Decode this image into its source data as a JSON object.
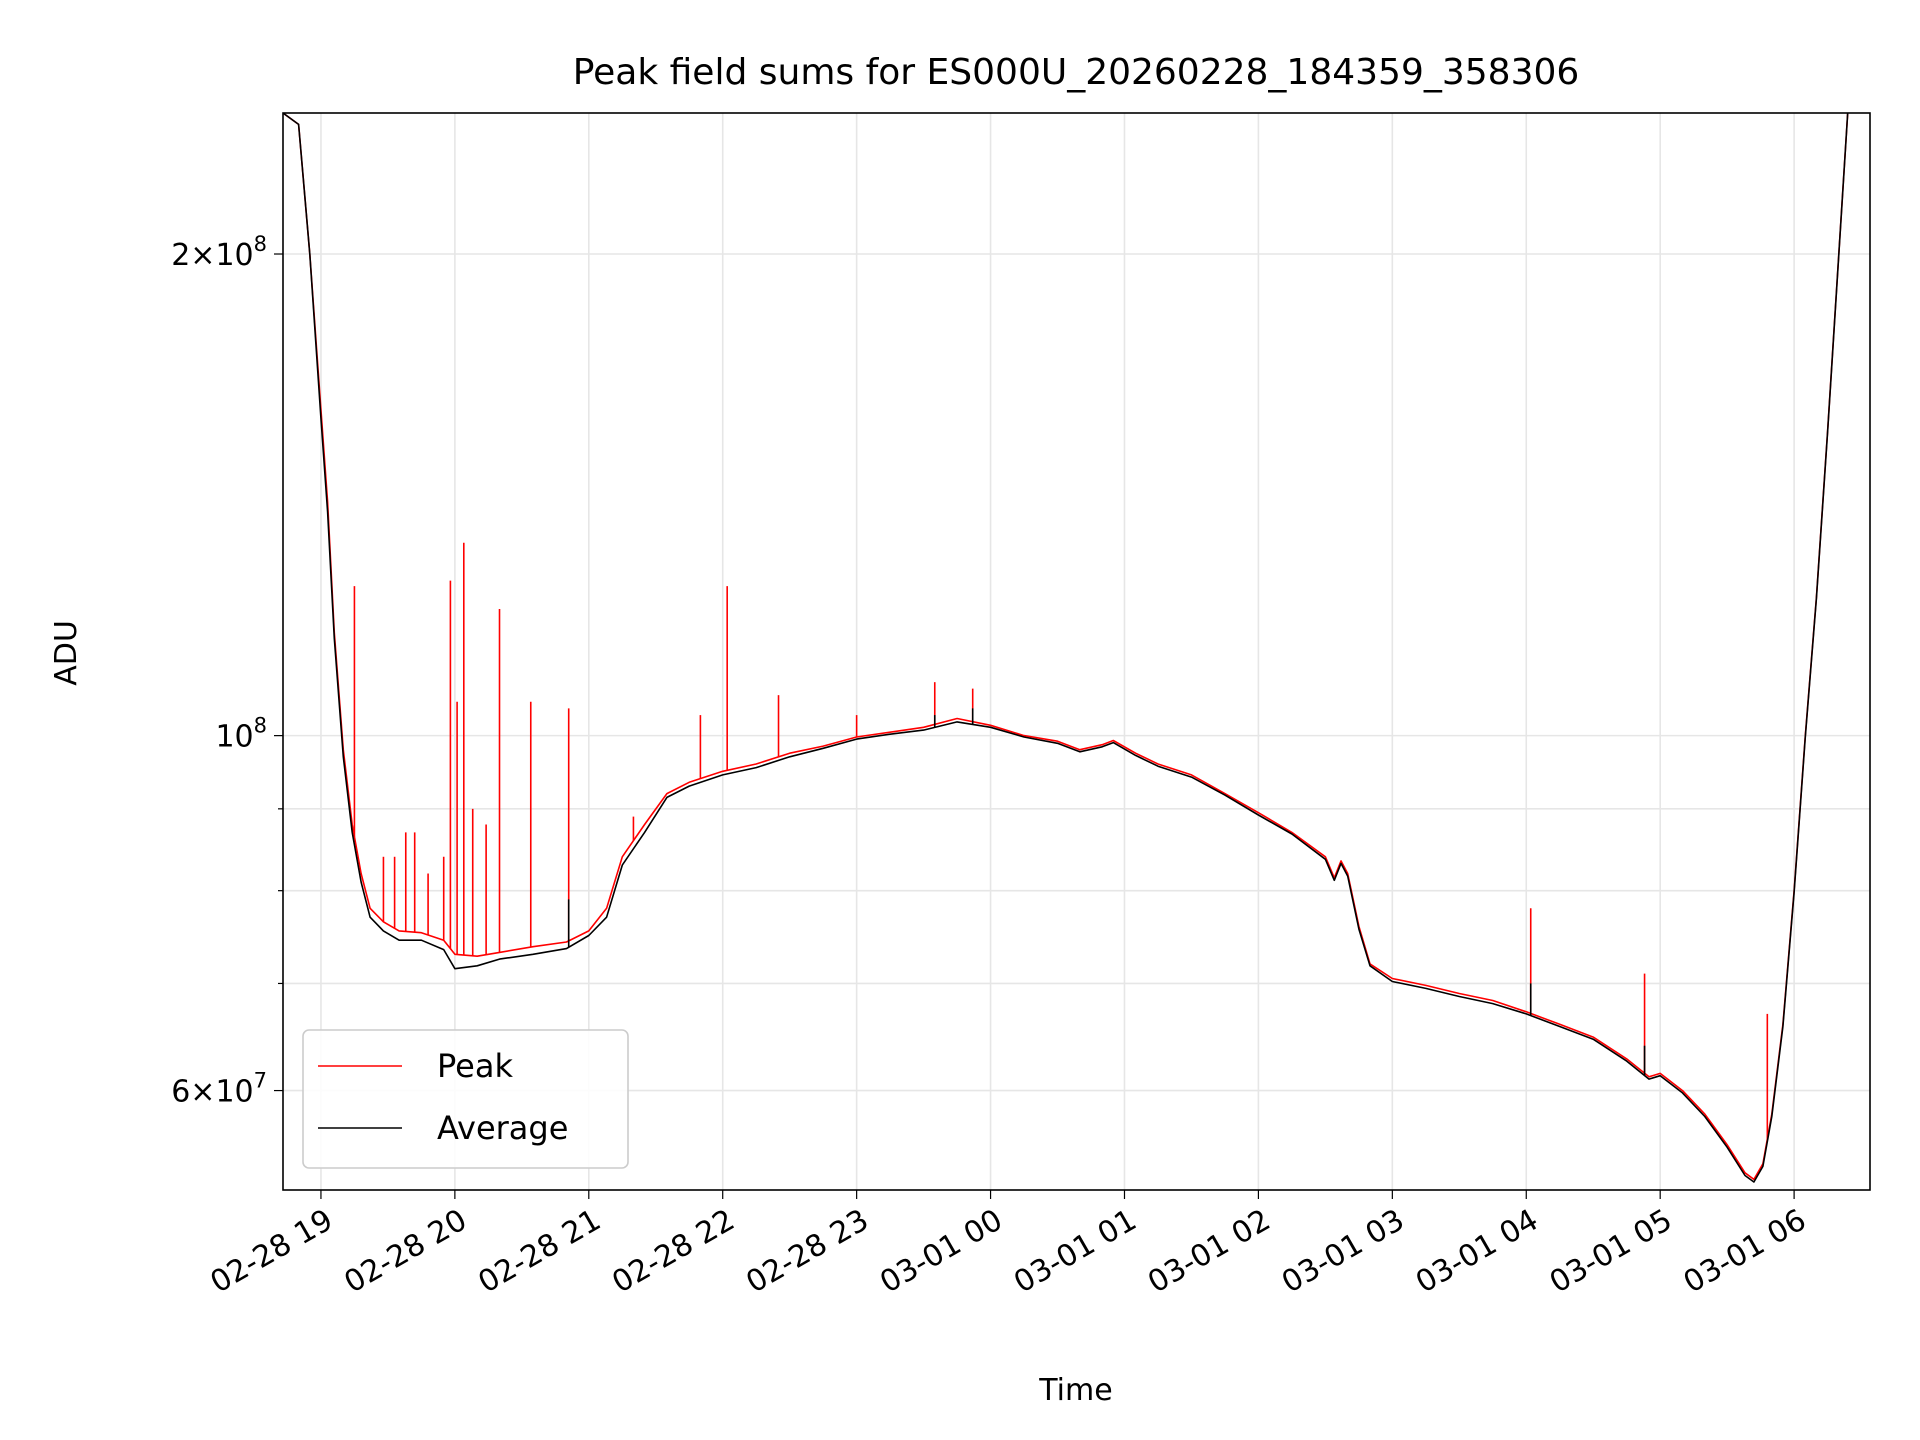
{
  "chart_data": {
    "type": "line",
    "title": "Peak field sums for ES000U_20260228_184359_358306",
    "xlabel": "Time",
    "ylabel": "ADU",
    "yscale": "log",
    "grid": true,
    "legend_position": "lower-left",
    "xlim": [
      "2026-02-28 18:43",
      "2026-03-01 06:34"
    ],
    "ylim": [
      52000000,
      245000000
    ],
    "x_ticks": [
      {
        "time": "2026-02-28 19:00",
        "label": "02-28 19"
      },
      {
        "time": "2026-02-28 20:00",
        "label": "02-28 20"
      },
      {
        "time": "2026-02-28 21:00",
        "label": "02-28 21"
      },
      {
        "time": "2026-02-28 22:00",
        "label": "02-28 22"
      },
      {
        "time": "2026-02-28 23:00",
        "label": "02-28 23"
      },
      {
        "time": "2026-03-01 00:00",
        "label": "03-01 00"
      },
      {
        "time": "2026-03-01 01:00",
        "label": "03-01 01"
      },
      {
        "time": "2026-03-01 02:00",
        "label": "03-01 02"
      },
      {
        "time": "2026-03-01 03:00",
        "label": "03-01 03"
      },
      {
        "time": "2026-03-01 04:00",
        "label": "03-01 04"
      },
      {
        "time": "2026-03-01 05:00",
        "label": "03-01 05"
      },
      {
        "time": "2026-03-01 06:00",
        "label": "03-01 06"
      }
    ],
    "y_major_ticks": [
      {
        "value": 60000000,
        "mant": "6",
        "exp": "7"
      },
      {
        "value": 100000000,
        "mant": "",
        "exp": "8"
      },
      {
        "value": 200000000,
        "mant": "2",
        "exp": "8"
      }
    ],
    "y_minor_ticks": [
      70000000,
      80000000,
      90000000
    ],
    "series": [
      {
        "name": "Peak",
        "color": "#ff0000",
        "points": [
          [
            "2026-02-28 18:43",
            245000000
          ],
          [
            "2026-02-28 18:50",
            241000000
          ],
          [
            "2026-02-28 18:55",
            200000000
          ],
          [
            "2026-02-28 19:00",
            160000000
          ],
          [
            "2026-02-28 19:03",
            140000000
          ],
          [
            "2026-02-28 19:06",
            116000000
          ],
          [
            "2026-02-28 19:10",
            98000000
          ],
          [
            "2026-02-28 19:14",
            88000000
          ],
          [
            "2026-02-28 19:18",
            82000000
          ],
          [
            "2026-02-28 19:22",
            78000000
          ],
          [
            "2026-02-28 19:28",
            76500000
          ],
          [
            "2026-02-28 19:35",
            75500000
          ],
          [
            "2026-02-28 19:45",
            75300000
          ],
          [
            "2026-02-28 19:55",
            74500000
          ],
          [
            "2026-02-28 20:00",
            73000000
          ],
          [
            "2026-02-28 20:10",
            72800000
          ],
          [
            "2026-02-28 20:20",
            73200000
          ],
          [
            "2026-02-28 20:35",
            73800000
          ],
          [
            "2026-02-28 20:50",
            74300000
          ],
          [
            "2026-02-28 21:00",
            75500000
          ],
          [
            "2026-02-28 21:08",
            78000000
          ],
          [
            "2026-02-28 21:15",
            84000000
          ],
          [
            "2026-02-28 21:25",
            88000000
          ],
          [
            "2026-02-28 21:35",
            92000000
          ],
          [
            "2026-02-28 21:45",
            93500000
          ],
          [
            "2026-02-28 22:00",
            95000000
          ],
          [
            "2026-02-28 22:15",
            96000000
          ],
          [
            "2026-02-28 22:30",
            97500000
          ],
          [
            "2026-02-28 22:45",
            98500000
          ],
          [
            "2026-02-28 23:00",
            99800000
          ],
          [
            "2026-02-28 23:15",
            100500000
          ],
          [
            "2026-02-28 23:30",
            101200000
          ],
          [
            "2026-02-28 23:45",
            102500000
          ],
          [
            "2026-03-01 00:00",
            101500000
          ],
          [
            "2026-03-01 00:15",
            100000000
          ],
          [
            "2026-03-01 00:30",
            99200000
          ],
          [
            "2026-03-01 00:40",
            98000000
          ],
          [
            "2026-03-01 00:50",
            98700000
          ],
          [
            "2026-03-01 00:55",
            99300000
          ],
          [
            "2026-03-01 01:05",
            97500000
          ],
          [
            "2026-03-01 01:15",
            96000000
          ],
          [
            "2026-03-01 01:30",
            94500000
          ],
          [
            "2026-03-01 01:45",
            92000000
          ],
          [
            "2026-03-01 02:00",
            89500000
          ],
          [
            "2026-03-01 02:15",
            87000000
          ],
          [
            "2026-03-01 02:30",
            84000000
          ],
          [
            "2026-03-01 02:34",
            81500000
          ],
          [
            "2026-03-01 02:37",
            83500000
          ],
          [
            "2026-03-01 02:40",
            82000000
          ],
          [
            "2026-03-01 02:45",
            76000000
          ],
          [
            "2026-03-01 02:50",
            72000000
          ],
          [
            "2026-03-01 03:00",
            70500000
          ],
          [
            "2026-03-01 03:15",
            69800000
          ],
          [
            "2026-03-01 03:30",
            69000000
          ],
          [
            "2026-03-01 03:45",
            68300000
          ],
          [
            "2026-03-01 04:00",
            67200000
          ],
          [
            "2026-03-01 04:15",
            66000000
          ],
          [
            "2026-03-01 04:30",
            64800000
          ],
          [
            "2026-03-01 04:45",
            62800000
          ],
          [
            "2026-03-01 04:55",
            61200000
          ],
          [
            "2026-03-01 05:00",
            61500000
          ],
          [
            "2026-03-01 05:10",
            60000000
          ],
          [
            "2026-03-01 05:20",
            58000000
          ],
          [
            "2026-03-01 05:30",
            55500000
          ],
          [
            "2026-03-01 05:38",
            53300000
          ],
          [
            "2026-03-01 05:42",
            52800000
          ],
          [
            "2026-03-01 05:46",
            54000000
          ],
          [
            "2026-03-01 05:50",
            58000000
          ],
          [
            "2026-03-01 05:55",
            66000000
          ],
          [
            "2026-03-01 06:00",
            80000000
          ],
          [
            "2026-03-01 06:05",
            100000000
          ],
          [
            "2026-03-01 06:10",
            122000000
          ],
          [
            "2026-03-01 06:15",
            155000000
          ],
          [
            "2026-03-01 06:20",
            200000000
          ],
          [
            "2026-03-01 06:24",
            245000000
          ]
        ],
        "spikes": [
          [
            "2026-02-28 19:15",
            124000000
          ],
          [
            "2026-02-28 19:28",
            84000000
          ],
          [
            "2026-02-28 19:33",
            84000000
          ],
          [
            "2026-02-28 19:38",
            87000000
          ],
          [
            "2026-02-28 19:42",
            87000000
          ],
          [
            "2026-02-28 19:48",
            82000000
          ],
          [
            "2026-02-28 19:55",
            84000000
          ],
          [
            "2026-02-28 19:58",
            125000000
          ],
          [
            "2026-02-28 20:01",
            105000000
          ],
          [
            "2026-02-28 20:04",
            132000000
          ],
          [
            "2026-02-28 20:08",
            90000000
          ],
          [
            "2026-02-28 20:14",
            88000000
          ],
          [
            "2026-02-28 20:20",
            120000000
          ],
          [
            "2026-02-28 20:34",
            105000000
          ],
          [
            "2026-02-28 20:51",
            104000000
          ],
          [
            "2026-02-28 21:20",
            89000000
          ],
          [
            "2026-02-28 21:50",
            103000000
          ],
          [
            "2026-02-28 22:02",
            124000000
          ],
          [
            "2026-02-28 22:25",
            106000000
          ],
          [
            "2026-02-28 23:00",
            103000000
          ],
          [
            "2026-02-28 23:35",
            108000000
          ],
          [
            "2026-02-28 23:52",
            107000000
          ],
          [
            "2026-03-01 04:02",
            78000000
          ],
          [
            "2026-03-01 04:53",
            71000000
          ],
          [
            "2026-03-01 05:48",
            67000000
          ]
        ]
      },
      {
        "name": "Average",
        "color": "#000000",
        "points": [
          [
            "2026-02-28 18:43",
            245000000
          ],
          [
            "2026-02-28 18:50",
            241000000
          ],
          [
            "2026-02-28 18:55",
            200000000
          ],
          [
            "2026-02-28 19:00",
            158000000
          ],
          [
            "2026-02-28 19:03",
            138000000
          ],
          [
            "2026-02-28 19:06",
            115000000
          ],
          [
            "2026-02-28 19:10",
            97000000
          ],
          [
            "2026-02-28 19:14",
            87000000
          ],
          [
            "2026-02-28 19:18",
            81000000
          ],
          [
            "2026-02-28 19:22",
            77000000
          ],
          [
            "2026-02-28 19:28",
            75500000
          ],
          [
            "2026-02-28 19:35",
            74500000
          ],
          [
            "2026-02-28 19:45",
            74500000
          ],
          [
            "2026-02-28 19:55",
            73500000
          ],
          [
            "2026-02-28 20:00",
            71500000
          ],
          [
            "2026-02-28 20:10",
            71800000
          ],
          [
            "2026-02-28 20:20",
            72500000
          ],
          [
            "2026-02-28 20:35",
            73000000
          ],
          [
            "2026-02-28 20:50",
            73600000
          ],
          [
            "2026-02-28 21:00",
            75000000
          ],
          [
            "2026-02-28 21:08",
            77000000
          ],
          [
            "2026-02-28 21:15",
            83000000
          ],
          [
            "2026-02-28 21:25",
            87000000
          ],
          [
            "2026-02-28 21:35",
            91500000
          ],
          [
            "2026-02-28 21:45",
            93000000
          ],
          [
            "2026-02-28 22:00",
            94500000
          ],
          [
            "2026-02-28 22:15",
            95500000
          ],
          [
            "2026-02-28 22:30",
            97000000
          ],
          [
            "2026-02-28 22:45",
            98200000
          ],
          [
            "2026-02-28 23:00",
            99500000
          ],
          [
            "2026-02-28 23:15",
            100200000
          ],
          [
            "2026-02-28 23:30",
            100800000
          ],
          [
            "2026-02-28 23:45",
            102000000
          ],
          [
            "2026-03-01 00:00",
            101200000
          ],
          [
            "2026-03-01 00:15",
            99800000
          ],
          [
            "2026-03-01 00:30",
            98900000
          ],
          [
            "2026-03-01 00:40",
            97700000
          ],
          [
            "2026-03-01 00:50",
            98400000
          ],
          [
            "2026-03-01 00:55",
            99000000
          ],
          [
            "2026-03-01 01:05",
            97200000
          ],
          [
            "2026-03-01 01:15",
            95700000
          ],
          [
            "2026-03-01 01:30",
            94200000
          ],
          [
            "2026-03-01 01:45",
            91800000
          ],
          [
            "2026-03-01 02:00",
            89200000
          ],
          [
            "2026-03-01 02:15",
            86800000
          ],
          [
            "2026-03-01 02:30",
            83700000
          ],
          [
            "2026-03-01 02:34",
            81200000
          ],
          [
            "2026-03-01 02:37",
            83200000
          ],
          [
            "2026-03-01 02:40",
            81700000
          ],
          [
            "2026-03-01 02:45",
            75700000
          ],
          [
            "2026-03-01 02:50",
            71800000
          ],
          [
            "2026-03-01 03:00",
            70200000
          ],
          [
            "2026-03-01 03:15",
            69500000
          ],
          [
            "2026-03-01 03:30",
            68700000
          ],
          [
            "2026-03-01 03:45",
            68000000
          ],
          [
            "2026-03-01 04:00",
            67000000
          ],
          [
            "2026-03-01 04:15",
            65800000
          ],
          [
            "2026-03-01 04:30",
            64600000
          ],
          [
            "2026-03-01 04:45",
            62600000
          ],
          [
            "2026-03-01 04:55",
            61000000
          ],
          [
            "2026-03-01 05:00",
            61300000
          ],
          [
            "2026-03-01 05:10",
            59800000
          ],
          [
            "2026-03-01 05:20",
            57800000
          ],
          [
            "2026-03-01 05:30",
            55300000
          ],
          [
            "2026-03-01 05:38",
            53100000
          ],
          [
            "2026-03-01 05:42",
            52600000
          ],
          [
            "2026-03-01 05:46",
            53800000
          ],
          [
            "2026-03-01 05:50",
            57800000
          ],
          [
            "2026-03-01 05:55",
            65800000
          ],
          [
            "2026-03-01 06:00",
            79800000
          ],
          [
            "2026-03-01 06:05",
            99800000
          ],
          [
            "2026-03-01 06:10",
            121800000
          ],
          [
            "2026-03-01 06:15",
            154800000
          ],
          [
            "2026-03-01 06:20",
            199800000
          ],
          [
            "2026-03-01 06:24",
            245000000
          ]
        ],
        "spikes": [
          [
            "2026-02-28 20:51",
            79000000
          ],
          [
            "2026-02-28 23:35",
            103000000
          ],
          [
            "2026-02-28 23:52",
            104000000
          ],
          [
            "2026-03-01 04:02",
            70000000
          ],
          [
            "2026-03-01 04:53",
            64000000
          ]
        ]
      }
    ]
  }
}
